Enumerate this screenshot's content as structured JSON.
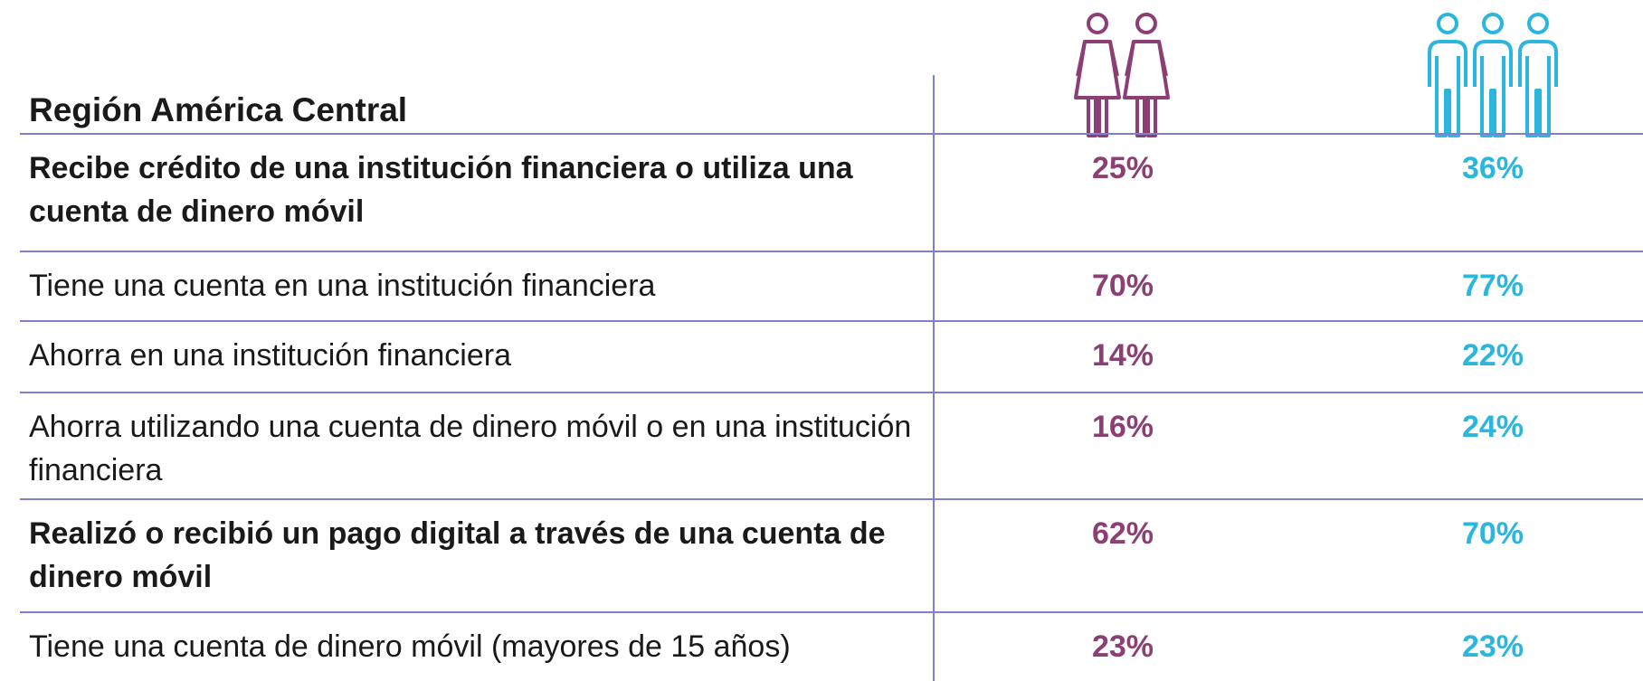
{
  "header": {
    "title": "Región América Central"
  },
  "table": {
    "rows": [
      {
        "label": "Recibe crédito de una institución financiera o utiliza una cuenta de dinero móvil",
        "women": "25%",
        "men": "36%",
        "bold": true
      },
      {
        "label": "Tiene una cuenta en una institución financiera",
        "women": "70%",
        "men": "77%",
        "bold": false
      },
      {
        "label": "Ahorra en una institución financiera",
        "women": "14%",
        "men": "22%",
        "bold": false
      },
      {
        "label": "Ahorra utilizando una cuenta de dinero móvil o en una institución financiera",
        "women": "16%",
        "men": "24%",
        "bold": false
      },
      {
        "label": "Realizó o recibió un pago digital a través de una cuenta de dinero móvil",
        "women": "62%",
        "men": "70%",
        "bold": true
      },
      {
        "label": "Tiene una cuenta de dinero móvil (mayores de 15 años)",
        "women": "23%",
        "men": "23%",
        "bold": false
      }
    ]
  }
}
